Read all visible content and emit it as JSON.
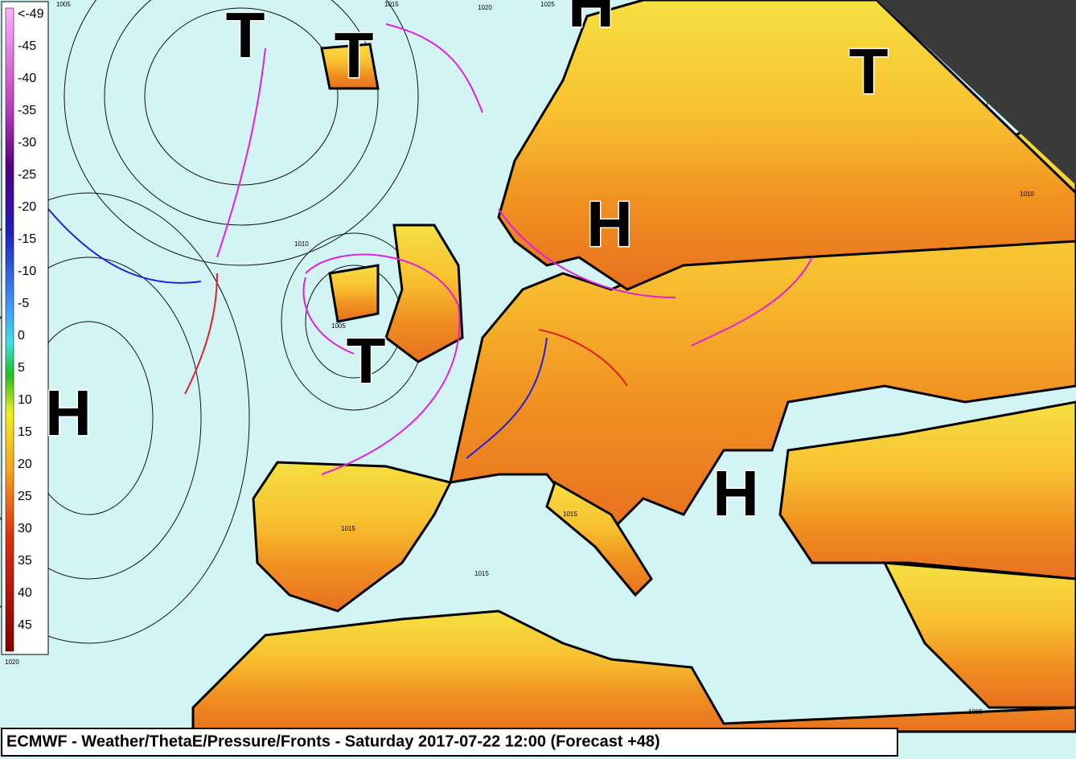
{
  "title": "ECMWF - Weather/ThetaE/Pressure/Fronts - Saturday 2017-07-22 12:00 (Forecast +48)",
  "legend": {
    "labels": [
      "<-49",
      "-45",
      "-40",
      "-35",
      "-30",
      "-25",
      "-20",
      "-15",
      "-10",
      "-5",
      "0",
      "5",
      "10",
      "15",
      "20",
      "25",
      "30",
      "35",
      "40",
      "45"
    ]
  },
  "pressure_centers": [
    {
      "label": "T"
    },
    {
      "label": "T"
    },
    {
      "label": "T"
    },
    {
      "label": "H"
    },
    {
      "label": "H"
    },
    {
      "label": "T"
    },
    {
      "label": "H"
    },
    {
      "label": "H"
    }
  ],
  "isobar_labels": [
    "1005",
    "1015",
    "1020",
    "1025",
    "1010",
    "1005",
    "1015",
    "1015",
    "1020",
    "1010",
    "1005",
    "1015"
  ]
}
